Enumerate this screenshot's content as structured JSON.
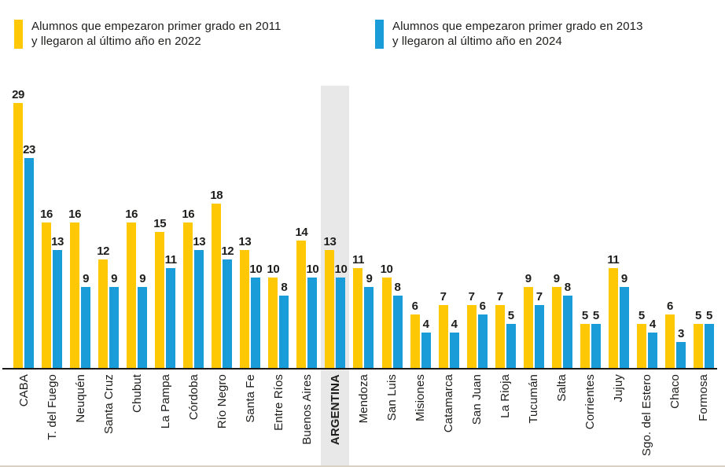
{
  "legend": {
    "items": [
      {
        "name": "cohort-2011-2022",
        "color": "#FFC805",
        "lines": [
          "Alumnos que empezaron primer grado en 2011",
          "y llegaron al último año en 2022"
        ]
      },
      {
        "name": "cohort-2013-2024",
        "color": "#1A9CD8",
        "lines": [
          "Alumnos que empezaron primer grado en 2013",
          "y llegaron al último año en 2024"
        ]
      }
    ]
  },
  "chart_data": {
    "type": "bar",
    "title": "",
    "xlabel": "",
    "ylabel": "",
    "grid": false,
    "legend_position": "top",
    "value_labels": true,
    "ylim": [
      0,
      31
    ],
    "categories": [
      "CABA",
      "T. del Fuego",
      "Neuquén",
      "Santa Cruz",
      "Chubut",
      "La Pampa",
      "Córdoba",
      "Río Negro",
      "Santa Fe",
      "Entre Ríos",
      "Buenos Aires",
      "ARGENTINA",
      "Mendoza",
      "San Luis",
      "Misiones",
      "Catamarca",
      "San Juan",
      "La Rioja",
      "Tucumán",
      "Salta",
      "Corrientes",
      "Jujuy",
      "Sgo. del Estero",
      "Chaco",
      "Formosa"
    ],
    "series": [
      {
        "name": "Alumnos que empezaron primer grado en 2011 y llegaron al último año en 2022",
        "color": "#FFC805",
        "values": [
          29,
          16,
          16,
          12,
          16,
          15,
          16,
          18,
          13,
          10,
          14,
          13,
          11,
          10,
          6,
          7,
          7,
          7,
          9,
          9,
          5,
          11,
          5,
          6,
          5
        ]
      },
      {
        "name": "Alumnos que empezaron primer grado en 2013 y llegaron al último año en 2024",
        "color": "#1A9CD8",
        "values": [
          23,
          13,
          9,
          9,
          9,
          11,
          13,
          12,
          10,
          8,
          10,
          10,
          9,
          8,
          4,
          4,
          6,
          5,
          7,
          8,
          5,
          9,
          4,
          3,
          5
        ]
      }
    ],
    "highlighted_category": "ARGENTINA",
    "highlight_color": "#E8E8E8",
    "axis_color": "#1a1a1a",
    "value_label_color": "#1d1d1b"
  }
}
